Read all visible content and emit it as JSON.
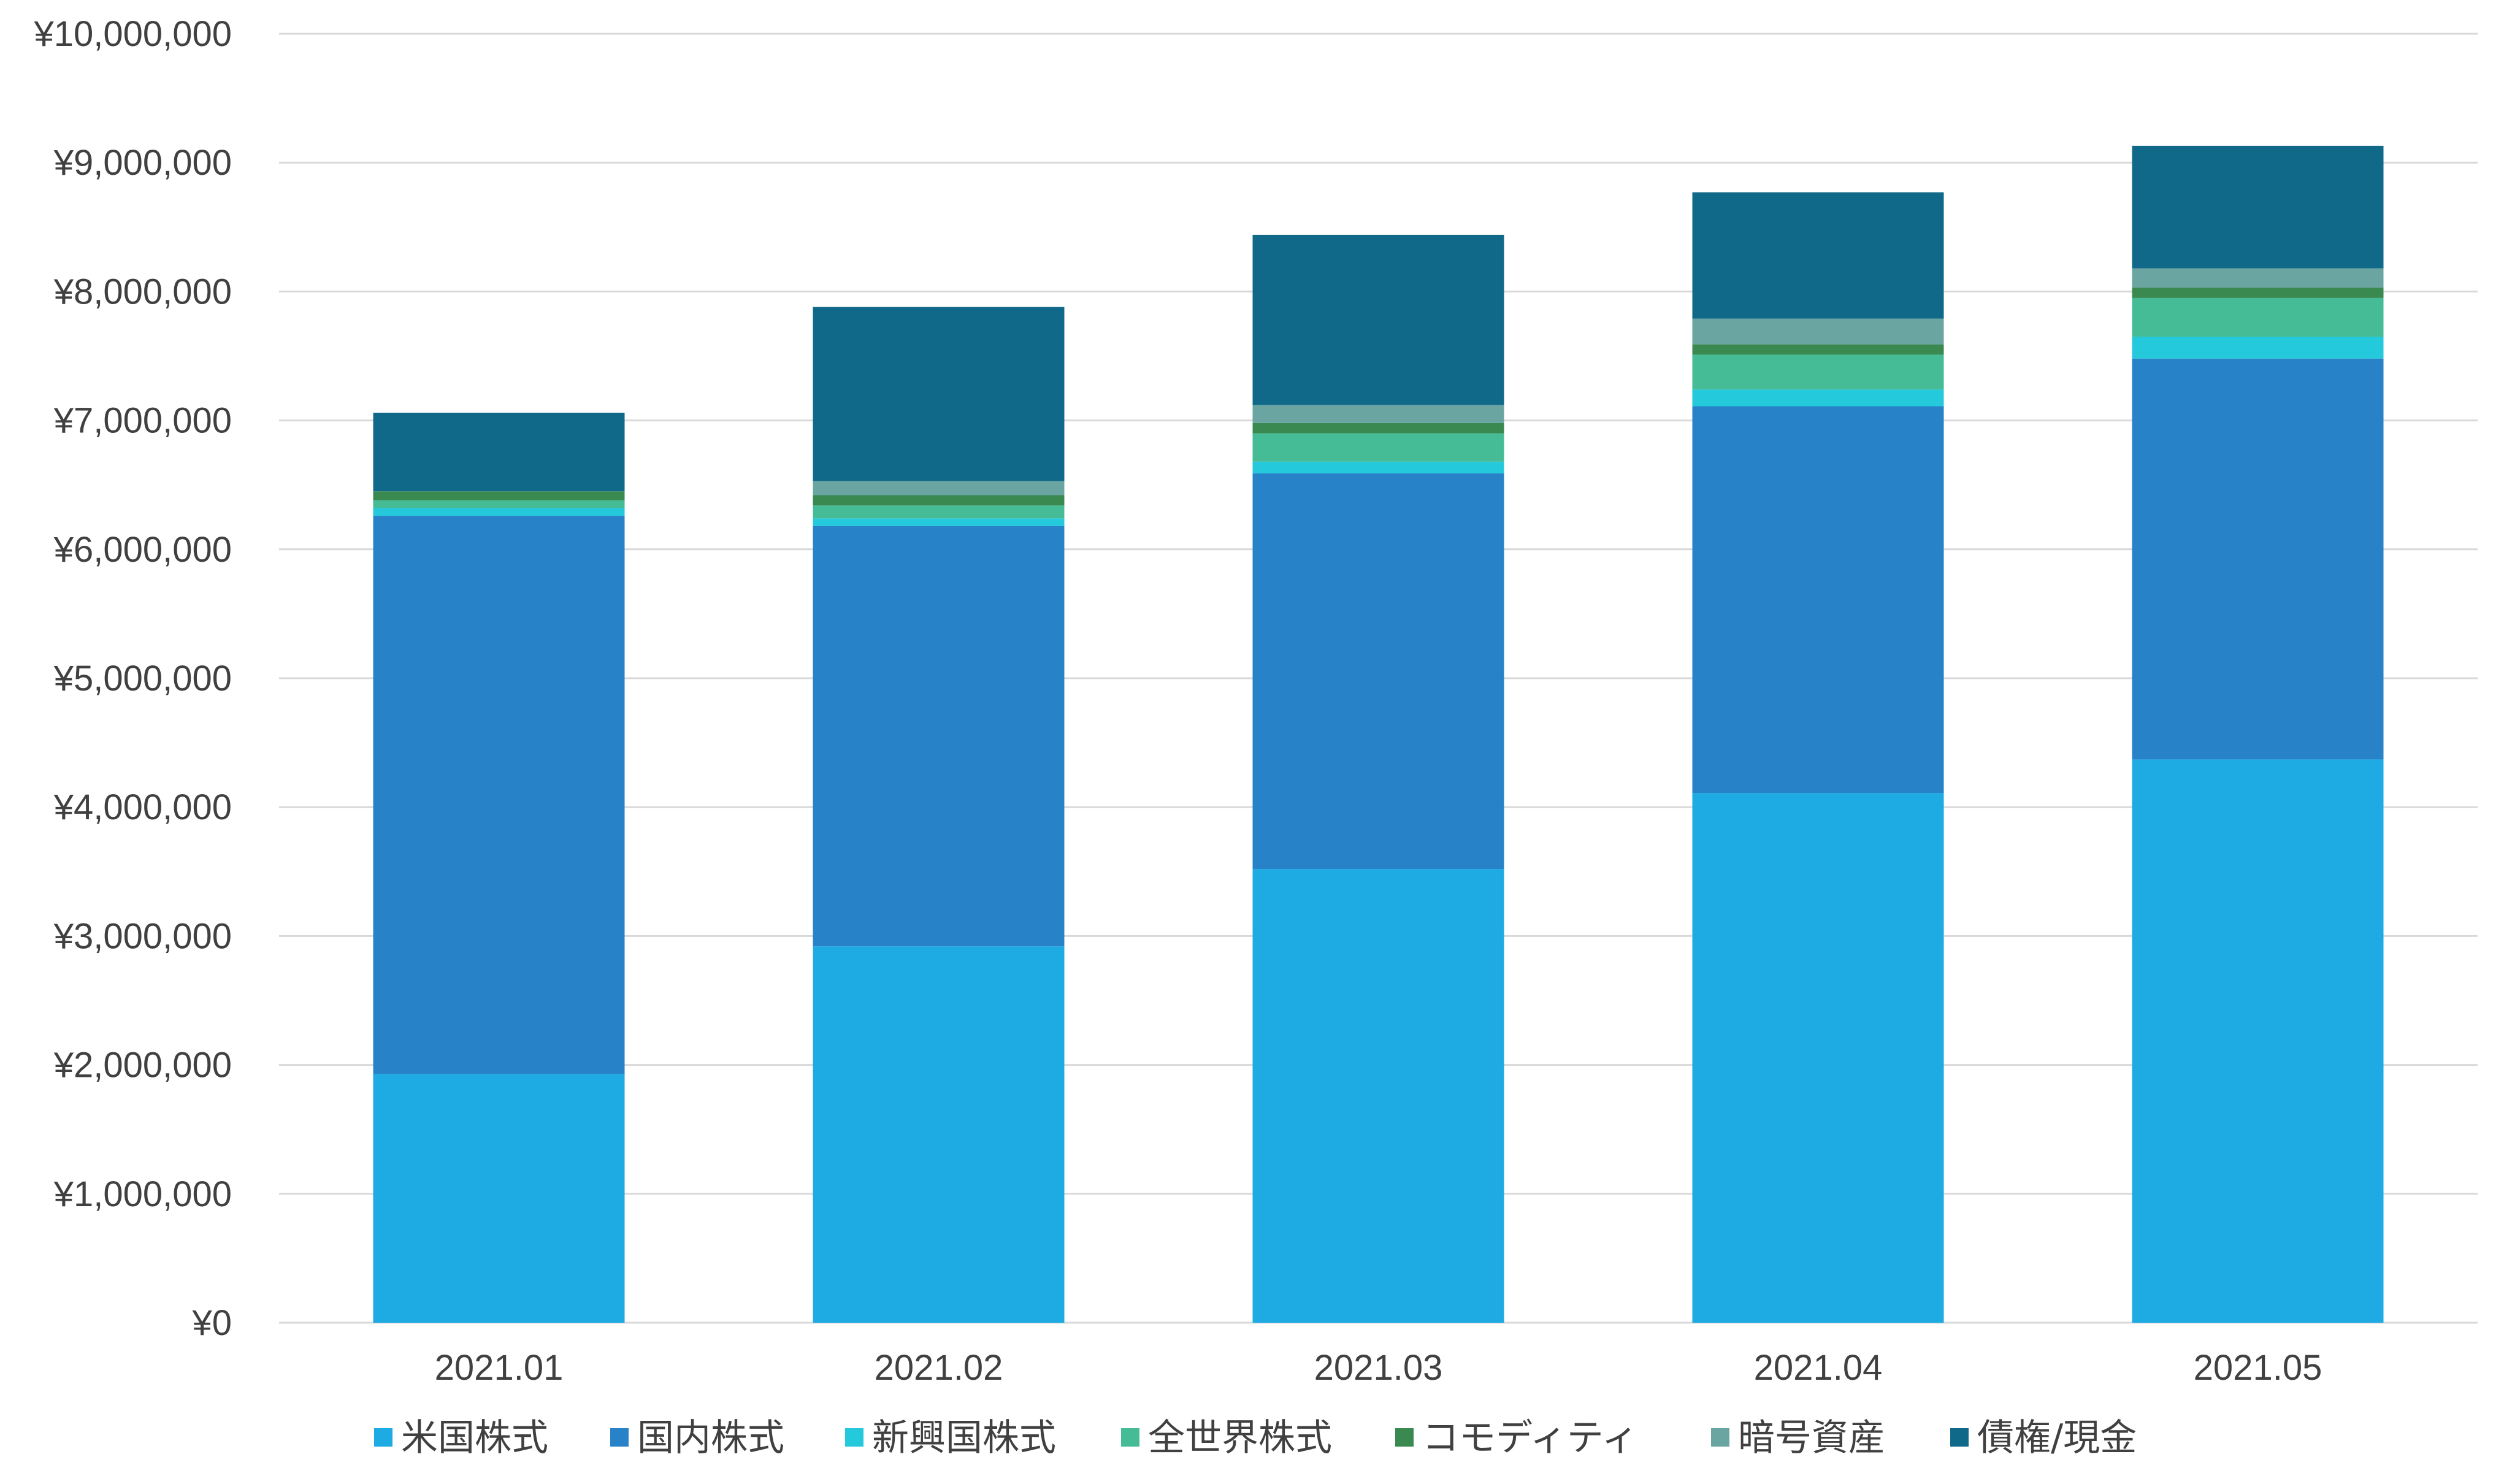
{
  "chart_data": {
    "type": "bar",
    "stacked": true,
    "categories": [
      "2021.01",
      "2021.02",
      "2021.03",
      "2021.04",
      "2021.05"
    ],
    "series": [
      {
        "name": "米国株式",
        "color": "#1eaae2",
        "values": [
          1930000,
          2920000,
          3520000,
          4110000,
          4370000
        ]
      },
      {
        "name": "国内株式",
        "color": "#2782c8",
        "values": [
          4330000,
          3260000,
          3070000,
          3000000,
          3110000
        ]
      },
      {
        "name": "新興国株式",
        "color": "#24c9dc",
        "values": [
          60000,
          60000,
          90000,
          130000,
          170000
        ]
      },
      {
        "name": "全世界株式",
        "color": "#45bb96",
        "values": [
          60000,
          100000,
          220000,
          270000,
          300000
        ]
      },
      {
        "name": "コモディティ",
        "color": "#3a8950",
        "values": [
          70000,
          80000,
          80000,
          80000,
          80000
        ]
      },
      {
        "name": "暗号資産",
        "color": "#6aa5a2",
        "values": [
          0,
          110000,
          140000,
          200000,
          150000
        ]
      },
      {
        "name": "債権/現金",
        "color": "#11698a",
        "values": [
          610000,
          1350000,
          1320000,
          980000,
          950000
        ]
      }
    ],
    "ylim": [
      0,
      10000000
    ],
    "yticks": [
      0,
      1000000,
      2000000,
      3000000,
      4000000,
      5000000,
      6000000,
      7000000,
      8000000,
      9000000,
      10000000
    ],
    "ytick_labels": [
      "¥0",
      "¥1,000,000",
      "¥2,000,000",
      "¥3,000,000",
      "¥4,000,000",
      "¥5,000,000",
      "¥6,000,000",
      "¥7,000,000",
      "¥8,000,000",
      "¥9,000,000",
      "¥10,000,000"
    ],
    "grid": true,
    "legend_position": "bottom"
  }
}
